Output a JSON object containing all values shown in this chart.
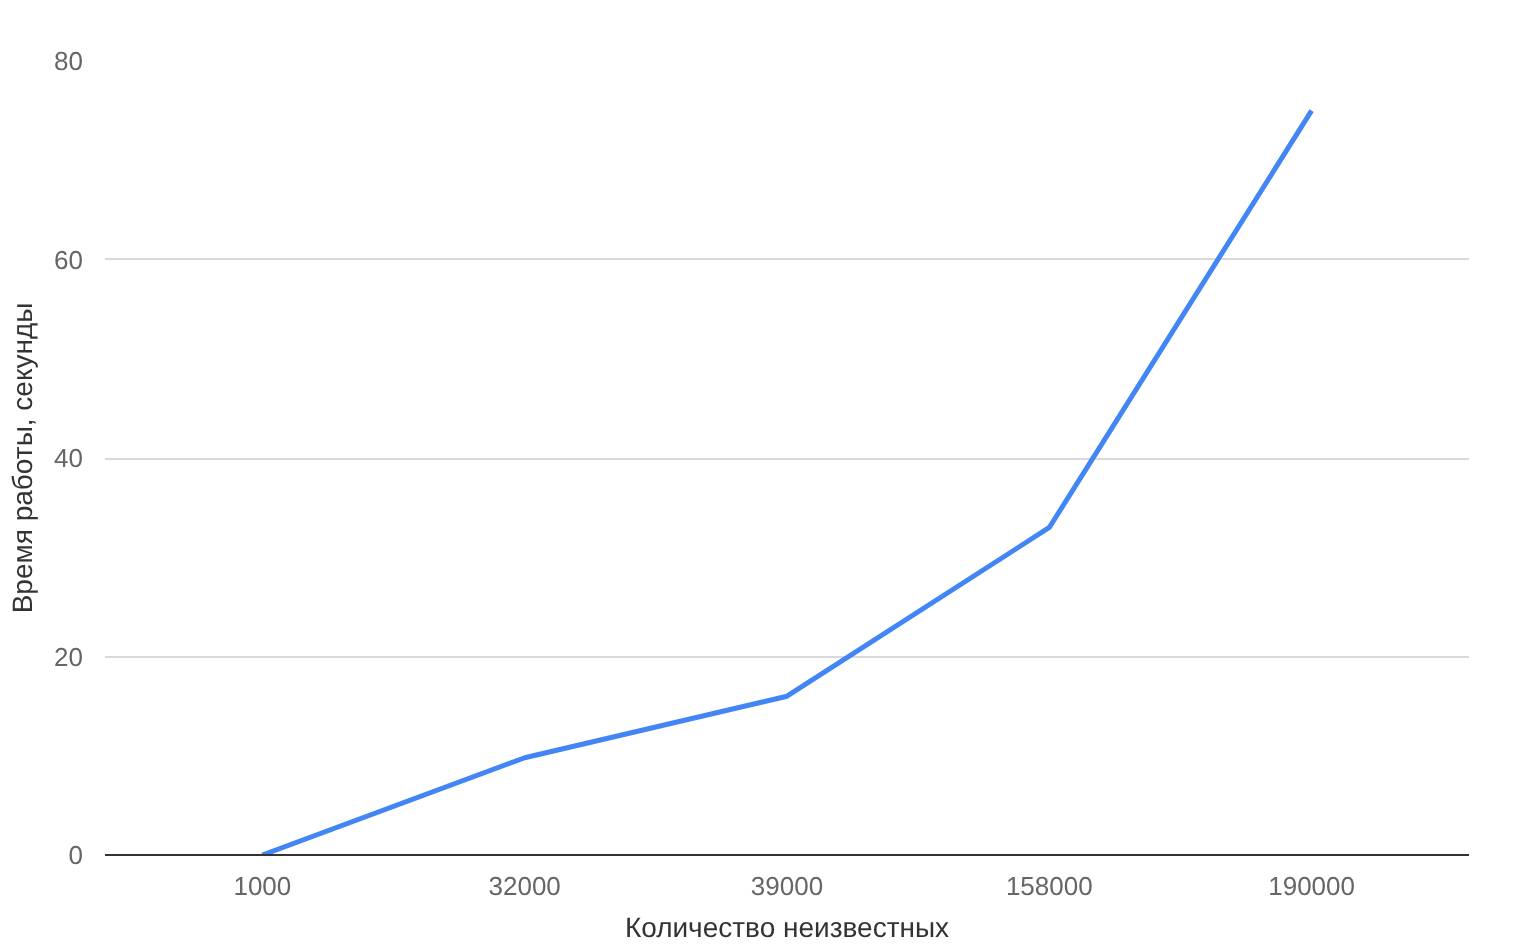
{
  "chart_data": {
    "type": "line",
    "xlabel": "Количество неизвестных",
    "ylabel": "Время работы, секунды",
    "categories": [
      "1000",
      "32000",
      "39000",
      "158000",
      "190000"
    ],
    "series": [
      {
        "color": "#4285f4",
        "values": [
          0,
          9.8,
          16,
          33,
          75
        ]
      }
    ],
    "ylim": [
      0,
      80
    ],
    "yticks": [
      0,
      20,
      40,
      60,
      80
    ],
    "grid": "y",
    "marker": "none",
    "line_style": "solid"
  }
}
